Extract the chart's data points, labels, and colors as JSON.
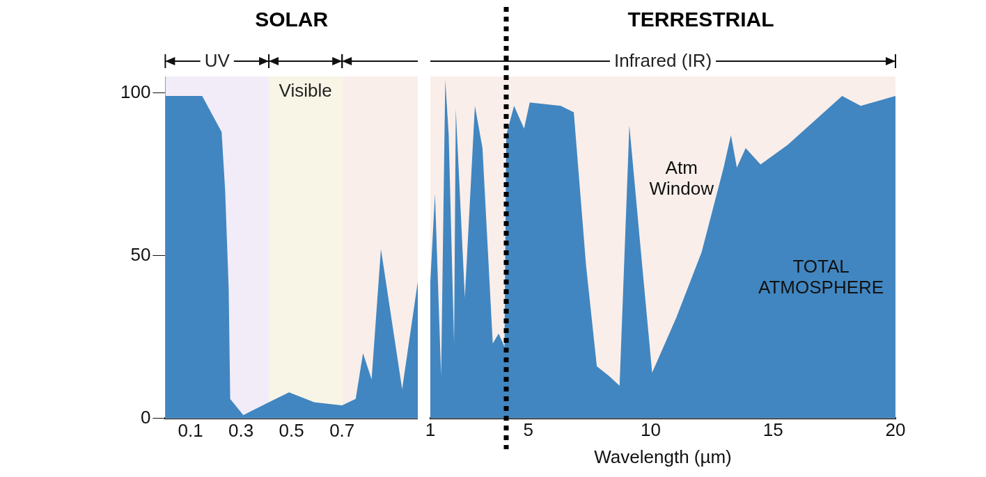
{
  "chart_data": [
    {
      "type": "area",
      "x": [
        0,
        0.146,
        0.223,
        0.237,
        0.251,
        0.257,
        0.309,
        0.41,
        0.49,
        0.59,
        0.7,
        0.754,
        0.783,
        0.817,
        0.854,
        0.938,
        1
      ],
      "series": [
        {
          "color": "#4186c0",
          "values": [
            99,
            99,
            88,
            70,
            40,
            6,
            1,
            5,
            8,
            5,
            4,
            6,
            20,
            12,
            52,
            9,
            42
          ]
        }
      ],
      "xlim": [
        0,
        1
      ],
      "xticks": [
        0.1,
        0.3,
        0.5,
        0.7
      ],
      "ylim": [
        0,
        105
      ],
      "yticks": [
        0,
        50,
        100
      ],
      "bands": [
        {
          "axis": "x",
          "from": 0,
          "to": 0.41,
          "label": "UV",
          "color": "#f1ecf8"
        },
        {
          "axis": "x",
          "from": 0.41,
          "to": 0.7,
          "label": "Visible",
          "color": "#f8f5e6"
        },
        {
          "axis": "x",
          "from": 0.7,
          "to": 1,
          "label": null,
          "color": "#f9eeea"
        }
      ],
      "annotations": [
        "SOLAR"
      ],
      "grid": false,
      "legend": false
    },
    {
      "type": "area",
      "xlabel": "Wavelength (µm)",
      "x": [
        1,
        1.19,
        1.44,
        1.61,
        1.75,
        1.97,
        2.04,
        2.41,
        2.82,
        3.13,
        3.55,
        3.79,
        4.03,
        4.1,
        4.42,
        4.83,
        5.06,
        6.33,
        6.86,
        7.36,
        7.8,
        8.3,
        8.73,
        9.13,
        9.53,
        10.06,
        11.05,
        12.08,
        12.98,
        13.28,
        13.52,
        13.88,
        14.49,
        15.6,
        17.82,
        18.58,
        20
      ],
      "series": [
        {
          "color": "#4186c0",
          "values": [
            42,
            69,
            13,
            104,
            87,
            23,
            95,
            37,
            96,
            83,
            23,
            26,
            22,
            87,
            96,
            89,
            97,
            96,
            94,
            47,
            16,
            13,
            10,
            90,
            57,
            14,
            31,
            51,
            77,
            87,
            77,
            83,
            78,
            84,
            99,
            96,
            99
          ]
        }
      ],
      "xlim": [
        1,
        20
      ],
      "xticks": [
        1,
        5,
        10,
        15,
        20
      ],
      "ylim": [
        0,
        105
      ],
      "yticks": [
        0,
        50,
        100
      ],
      "tick_labels": "x",
      "ref_lines": [
        {
          "axis": "x",
          "value": 4.1,
          "label": null,
          "color": "#000000",
          "line_style": "dotted"
        }
      ],
      "bands": [
        {
          "axis": "x",
          "from": 1,
          "to": 20,
          "label": "Infrared (IR)",
          "color": "#f9eeea"
        }
      ],
      "annotations": [
        "TERRESTRIAL",
        "Atm Window",
        "TOTAL ATMOSPHERE"
      ],
      "grid": false,
      "legend": false
    }
  ]
}
